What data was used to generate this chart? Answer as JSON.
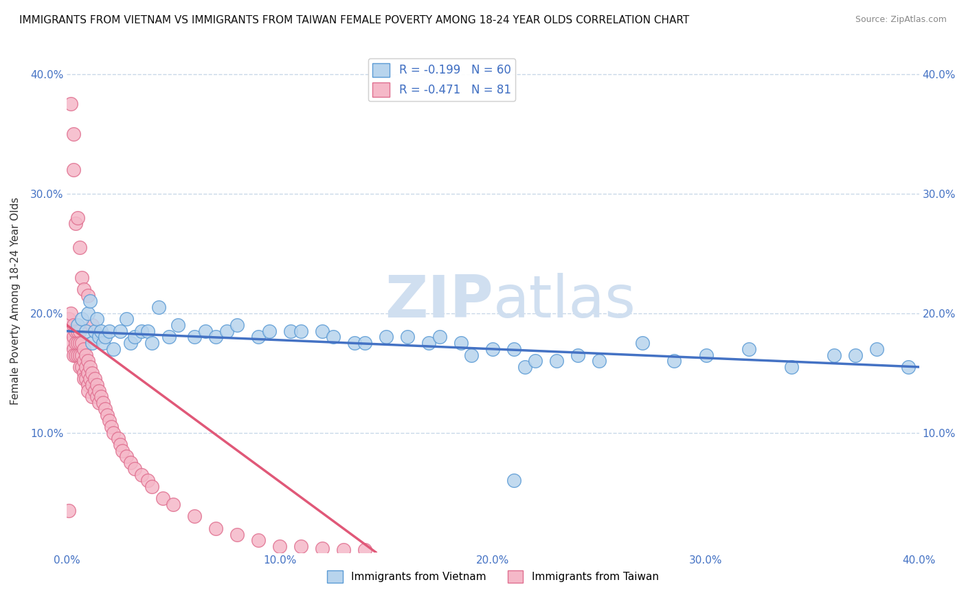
{
  "title": "IMMIGRANTS FROM VIETNAM VS IMMIGRANTS FROM TAIWAN FEMALE POVERTY AMONG 18-24 YEAR OLDS CORRELATION CHART",
  "source": "Source: ZipAtlas.com",
  "ylabel": "Female Poverty Among 18-24 Year Olds",
  "xlim": [
    0.0,
    0.4
  ],
  "ylim": [
    0.0,
    0.42
  ],
  "xticks": [
    0.0,
    0.1,
    0.2,
    0.3,
    0.4
  ],
  "yticks": [
    0.1,
    0.2,
    0.3,
    0.4
  ],
  "xticklabels": [
    "0.0%",
    "10.0%",
    "20.0%",
    "30.0%",
    "40.0%"
  ],
  "yticklabels_left": [
    "10.0%",
    "20.0%",
    "30.0%",
    "40.0%"
  ],
  "yticklabels_right": [
    "10.0%",
    "20.0%",
    "30.0%",
    "40.0%"
  ],
  "vietnam_color": "#b8d4ed",
  "taiwan_color": "#f5b8c8",
  "vietnam_edge": "#5b9bd5",
  "taiwan_edge": "#e07090",
  "trendline_vietnam_color": "#4472c4",
  "trendline_taiwan_color": "#e05878",
  "legend_label_vietnam": "Immigrants from Vietnam",
  "legend_label_taiwan": "Immigrants from Taiwan",
  "R_vietnam": -0.199,
  "N_vietnam": 60,
  "R_taiwan": -0.471,
  "N_taiwan": 81,
  "vietnam_x": [
    0.005,
    0.007,
    0.009,
    0.01,
    0.011,
    0.012,
    0.013,
    0.014,
    0.015,
    0.016,
    0.017,
    0.018,
    0.02,
    0.022,
    0.025,
    0.028,
    0.03,
    0.032,
    0.035,
    0.038,
    0.04,
    0.043,
    0.048,
    0.052,
    0.06,
    0.065,
    0.07,
    0.075,
    0.08,
    0.09,
    0.095,
    0.105,
    0.11,
    0.12,
    0.125,
    0.135,
    0.14,
    0.15,
    0.16,
    0.17,
    0.175,
    0.185,
    0.19,
    0.2,
    0.21,
    0.215,
    0.22,
    0.23,
    0.24,
    0.25,
    0.27,
    0.285,
    0.3,
    0.32,
    0.34,
    0.36,
    0.37,
    0.38,
    0.395,
    0.21
  ],
  "vietnam_y": [
    0.19,
    0.195,
    0.185,
    0.2,
    0.21,
    0.175,
    0.185,
    0.195,
    0.18,
    0.185,
    0.175,
    0.18,
    0.185,
    0.17,
    0.185,
    0.195,
    0.175,
    0.18,
    0.185,
    0.185,
    0.175,
    0.205,
    0.18,
    0.19,
    0.18,
    0.185,
    0.18,
    0.185,
    0.19,
    0.18,
    0.185,
    0.185,
    0.185,
    0.185,
    0.18,
    0.175,
    0.175,
    0.18,
    0.18,
    0.175,
    0.18,
    0.175,
    0.165,
    0.17,
    0.17,
    0.155,
    0.16,
    0.16,
    0.165,
    0.16,
    0.175,
    0.16,
    0.165,
    0.17,
    0.155,
    0.165,
    0.165,
    0.17,
    0.155,
    0.06
  ],
  "taiwan_x": [
    0.001,
    0.002,
    0.002,
    0.002,
    0.003,
    0.003,
    0.003,
    0.003,
    0.004,
    0.004,
    0.004,
    0.005,
    0.005,
    0.005,
    0.006,
    0.006,
    0.006,
    0.006,
    0.007,
    0.007,
    0.007,
    0.008,
    0.008,
    0.008,
    0.008,
    0.009,
    0.009,
    0.009,
    0.01,
    0.01,
    0.01,
    0.01,
    0.011,
    0.011,
    0.012,
    0.012,
    0.012,
    0.013,
    0.013,
    0.014,
    0.014,
    0.015,
    0.015,
    0.016,
    0.017,
    0.018,
    0.019,
    0.02,
    0.021,
    0.022,
    0.024,
    0.025,
    0.026,
    0.028,
    0.03,
    0.032,
    0.035,
    0.038,
    0.04,
    0.045,
    0.05,
    0.06,
    0.07,
    0.08,
    0.09,
    0.1,
    0.11,
    0.12,
    0.13,
    0.14,
    0.002,
    0.003,
    0.004,
    0.003,
    0.005,
    0.006,
    0.007,
    0.008,
    0.01,
    0.012,
    0.001
  ],
  "taiwan_y": [
    0.195,
    0.2,
    0.185,
    0.175,
    0.19,
    0.18,
    0.17,
    0.165,
    0.185,
    0.175,
    0.165,
    0.185,
    0.175,
    0.165,
    0.185,
    0.175,
    0.165,
    0.155,
    0.175,
    0.165,
    0.155,
    0.17,
    0.16,
    0.15,
    0.145,
    0.165,
    0.155,
    0.145,
    0.16,
    0.15,
    0.14,
    0.135,
    0.155,
    0.145,
    0.15,
    0.14,
    0.13,
    0.145,
    0.135,
    0.14,
    0.13,
    0.135,
    0.125,
    0.13,
    0.125,
    0.12,
    0.115,
    0.11,
    0.105,
    0.1,
    0.095,
    0.09,
    0.085,
    0.08,
    0.075,
    0.07,
    0.065,
    0.06,
    0.055,
    0.045,
    0.04,
    0.03,
    0.02,
    0.015,
    0.01,
    0.005,
    0.005,
    0.003,
    0.002,
    0.002,
    0.375,
    0.35,
    0.275,
    0.32,
    0.28,
    0.255,
    0.23,
    0.22,
    0.215,
    0.19,
    0.035
  ],
  "trendline_vietnam_start_x": 0.0,
  "trendline_vietnam_start_y": 0.185,
  "trendline_vietnam_end_x": 0.4,
  "trendline_vietnam_end_y": 0.155,
  "trendline_taiwan_start_x": 0.0,
  "trendline_taiwan_start_y": 0.19,
  "trendline_taiwan_end_x": 0.145,
  "trendline_taiwan_end_y": 0.0,
  "watermark_zip": "ZIP",
  "watermark_atlas": "atlas",
  "watermark_color": "#d0dff0",
  "background_color": "#ffffff",
  "grid_color": "#c8d8e8",
  "title_fontsize": 11,
  "axis_tick_color": "#4472c4",
  "axis_tick_fontsize": 11,
  "legend_text_color": "#000000"
}
